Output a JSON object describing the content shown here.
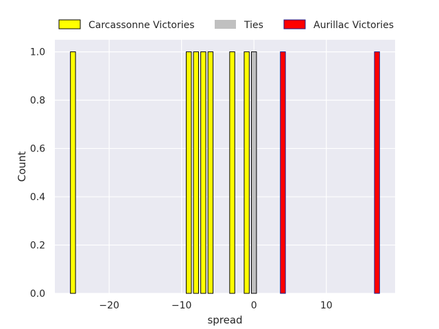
{
  "chart_data": {
    "type": "bar",
    "xlabel": "spread",
    "ylabel": "Count",
    "xlim": [
      -27.5,
      19.5
    ],
    "ylim": [
      0,
      1.05
    ],
    "x_ticks": [
      -20,
      -10,
      0,
      10
    ],
    "x_tick_labels": [
      "−20",
      "−10",
      "0",
      "10"
    ],
    "y_ticks": [
      0.0,
      0.2,
      0.4,
      0.6,
      0.8,
      1.0
    ],
    "y_tick_labels": [
      "0.0",
      "0.2",
      "0.4",
      "0.6",
      "0.8",
      "1.0"
    ],
    "grid": true,
    "legend_position": "top",
    "bin_width": 0.7,
    "series": [
      {
        "name": "Carcassonne Victories",
        "color": "#ffff00",
        "edge": "#000000",
        "bars": [
          {
            "x": -25,
            "count": 1
          },
          {
            "x": -9,
            "count": 1
          },
          {
            "x": -8,
            "count": 1
          },
          {
            "x": -7,
            "count": 1
          },
          {
            "x": -6,
            "count": 1
          },
          {
            "x": -3,
            "count": 1
          },
          {
            "x": -1,
            "count": 1
          }
        ]
      },
      {
        "name": "Ties",
        "color": "#c0c0c0",
        "edge": "#000000",
        "bars": [
          {
            "x": 0,
            "count": 1
          }
        ]
      },
      {
        "name": "Aurillac Victories",
        "color": "#ff0000",
        "edge": "#1a1a8a",
        "bars": [
          {
            "x": 4,
            "count": 1
          },
          {
            "x": 17,
            "count": 1
          }
        ]
      }
    ]
  }
}
